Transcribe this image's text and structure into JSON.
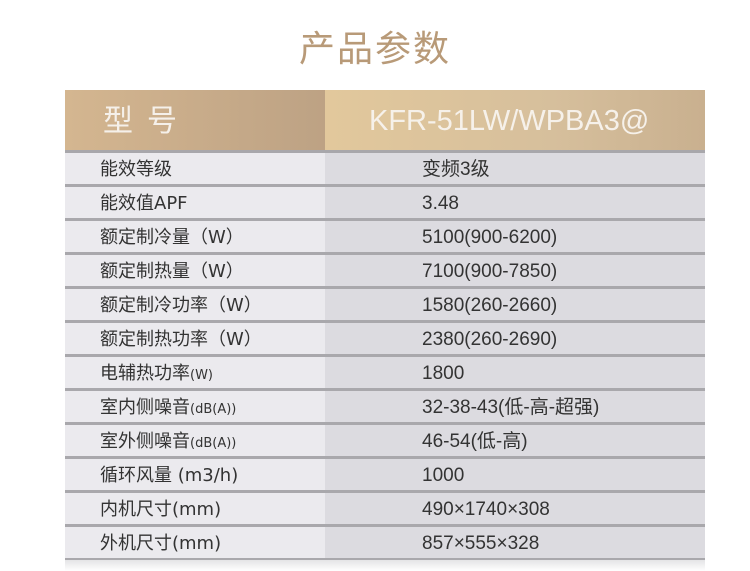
{
  "title": "产品参数",
  "header": {
    "label": "型号",
    "value": "KFR-51LW/WPBA3@"
  },
  "rows": [
    {
      "label": "能效等级",
      "unit": "",
      "value": "变频3级"
    },
    {
      "label": "能效值APF",
      "unit": "",
      "value": "3.48"
    },
    {
      "label": "额定制冷量（W）",
      "unit": "",
      "value": "5100(900-6200)"
    },
    {
      "label": "额定制热量（W）",
      "unit": "",
      "value": "7100(900-7850)"
    },
    {
      "label": "额定制冷功率（W）",
      "unit": "",
      "value": "1580(260-2660)"
    },
    {
      "label": "额定制热功率（W）",
      "unit": "",
      "value": "2380(260-2690)"
    },
    {
      "label": "电辅热功率",
      "unit": "(W)",
      "value": "1800"
    },
    {
      "label": "室内侧噪音",
      "unit": "(dB(A))",
      "value": "32-38-43(低-高-超强)"
    },
    {
      "label": "室外侧噪音",
      "unit": "(dB(A))",
      "value": "46-54(低-高)"
    },
    {
      "label": "循环风量 (m3/h)",
      "unit": "",
      "value": "1000"
    },
    {
      "label": "内机尺寸(mm)",
      "unit": "",
      "value": "490×1740×308"
    },
    {
      "label": "外机尺寸(mm)",
      "unit": "",
      "value": "857×555×328"
    }
  ]
}
